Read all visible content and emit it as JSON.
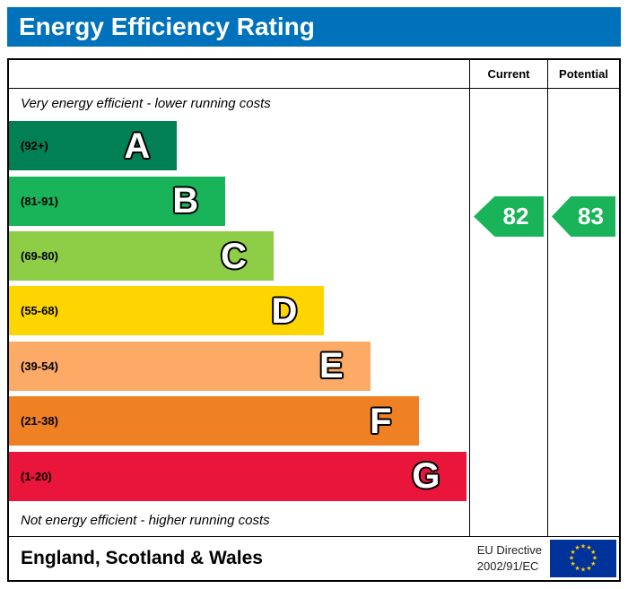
{
  "header": {
    "title": "Energy Efficiency Rating",
    "bg": "#0072bc"
  },
  "table": {
    "current_label": "Current",
    "potential_label": "Potential"
  },
  "chart_data": {
    "type": "bar",
    "title": "Energy Efficiency Rating",
    "top_note": "Very energy efficient - lower running costs",
    "bottom_note": "Not energy efficient - higher running costs",
    "bands": [
      {
        "letter": "A",
        "range": "(92+)",
        "color": "#008054",
        "width_pct": 36.5
      },
      {
        "letter": "B",
        "range": "(81-91)",
        "color": "#19b459",
        "width_pct": 47
      },
      {
        "letter": "C",
        "range": "(69-80)",
        "color": "#8dce46",
        "width_pct": 57.5
      },
      {
        "letter": "D",
        "range": "(55-68)",
        "color": "#ffd500",
        "width_pct": 68.5
      },
      {
        "letter": "E",
        "range": "(39-54)",
        "color": "#fcaa65",
        "width_pct": 78.5
      },
      {
        "letter": "F",
        "range": "(21-38)",
        "color": "#ef8023",
        "width_pct": 89
      },
      {
        "letter": "G",
        "range": "(1-20)",
        "color": "#e9153b",
        "width_pct": 99.5
      }
    ],
    "current": {
      "value": 82,
      "band": "B",
      "color": "#19b459"
    },
    "potential": {
      "value": 83,
      "band": "B",
      "color": "#19b459"
    }
  },
  "footer": {
    "region": "England, Scotland & Wales",
    "directive": [
      "EU Directive",
      "2002/91/EC"
    ],
    "eu_flag_colors": {
      "field": "#003399",
      "stars": "#FFCC00"
    }
  }
}
